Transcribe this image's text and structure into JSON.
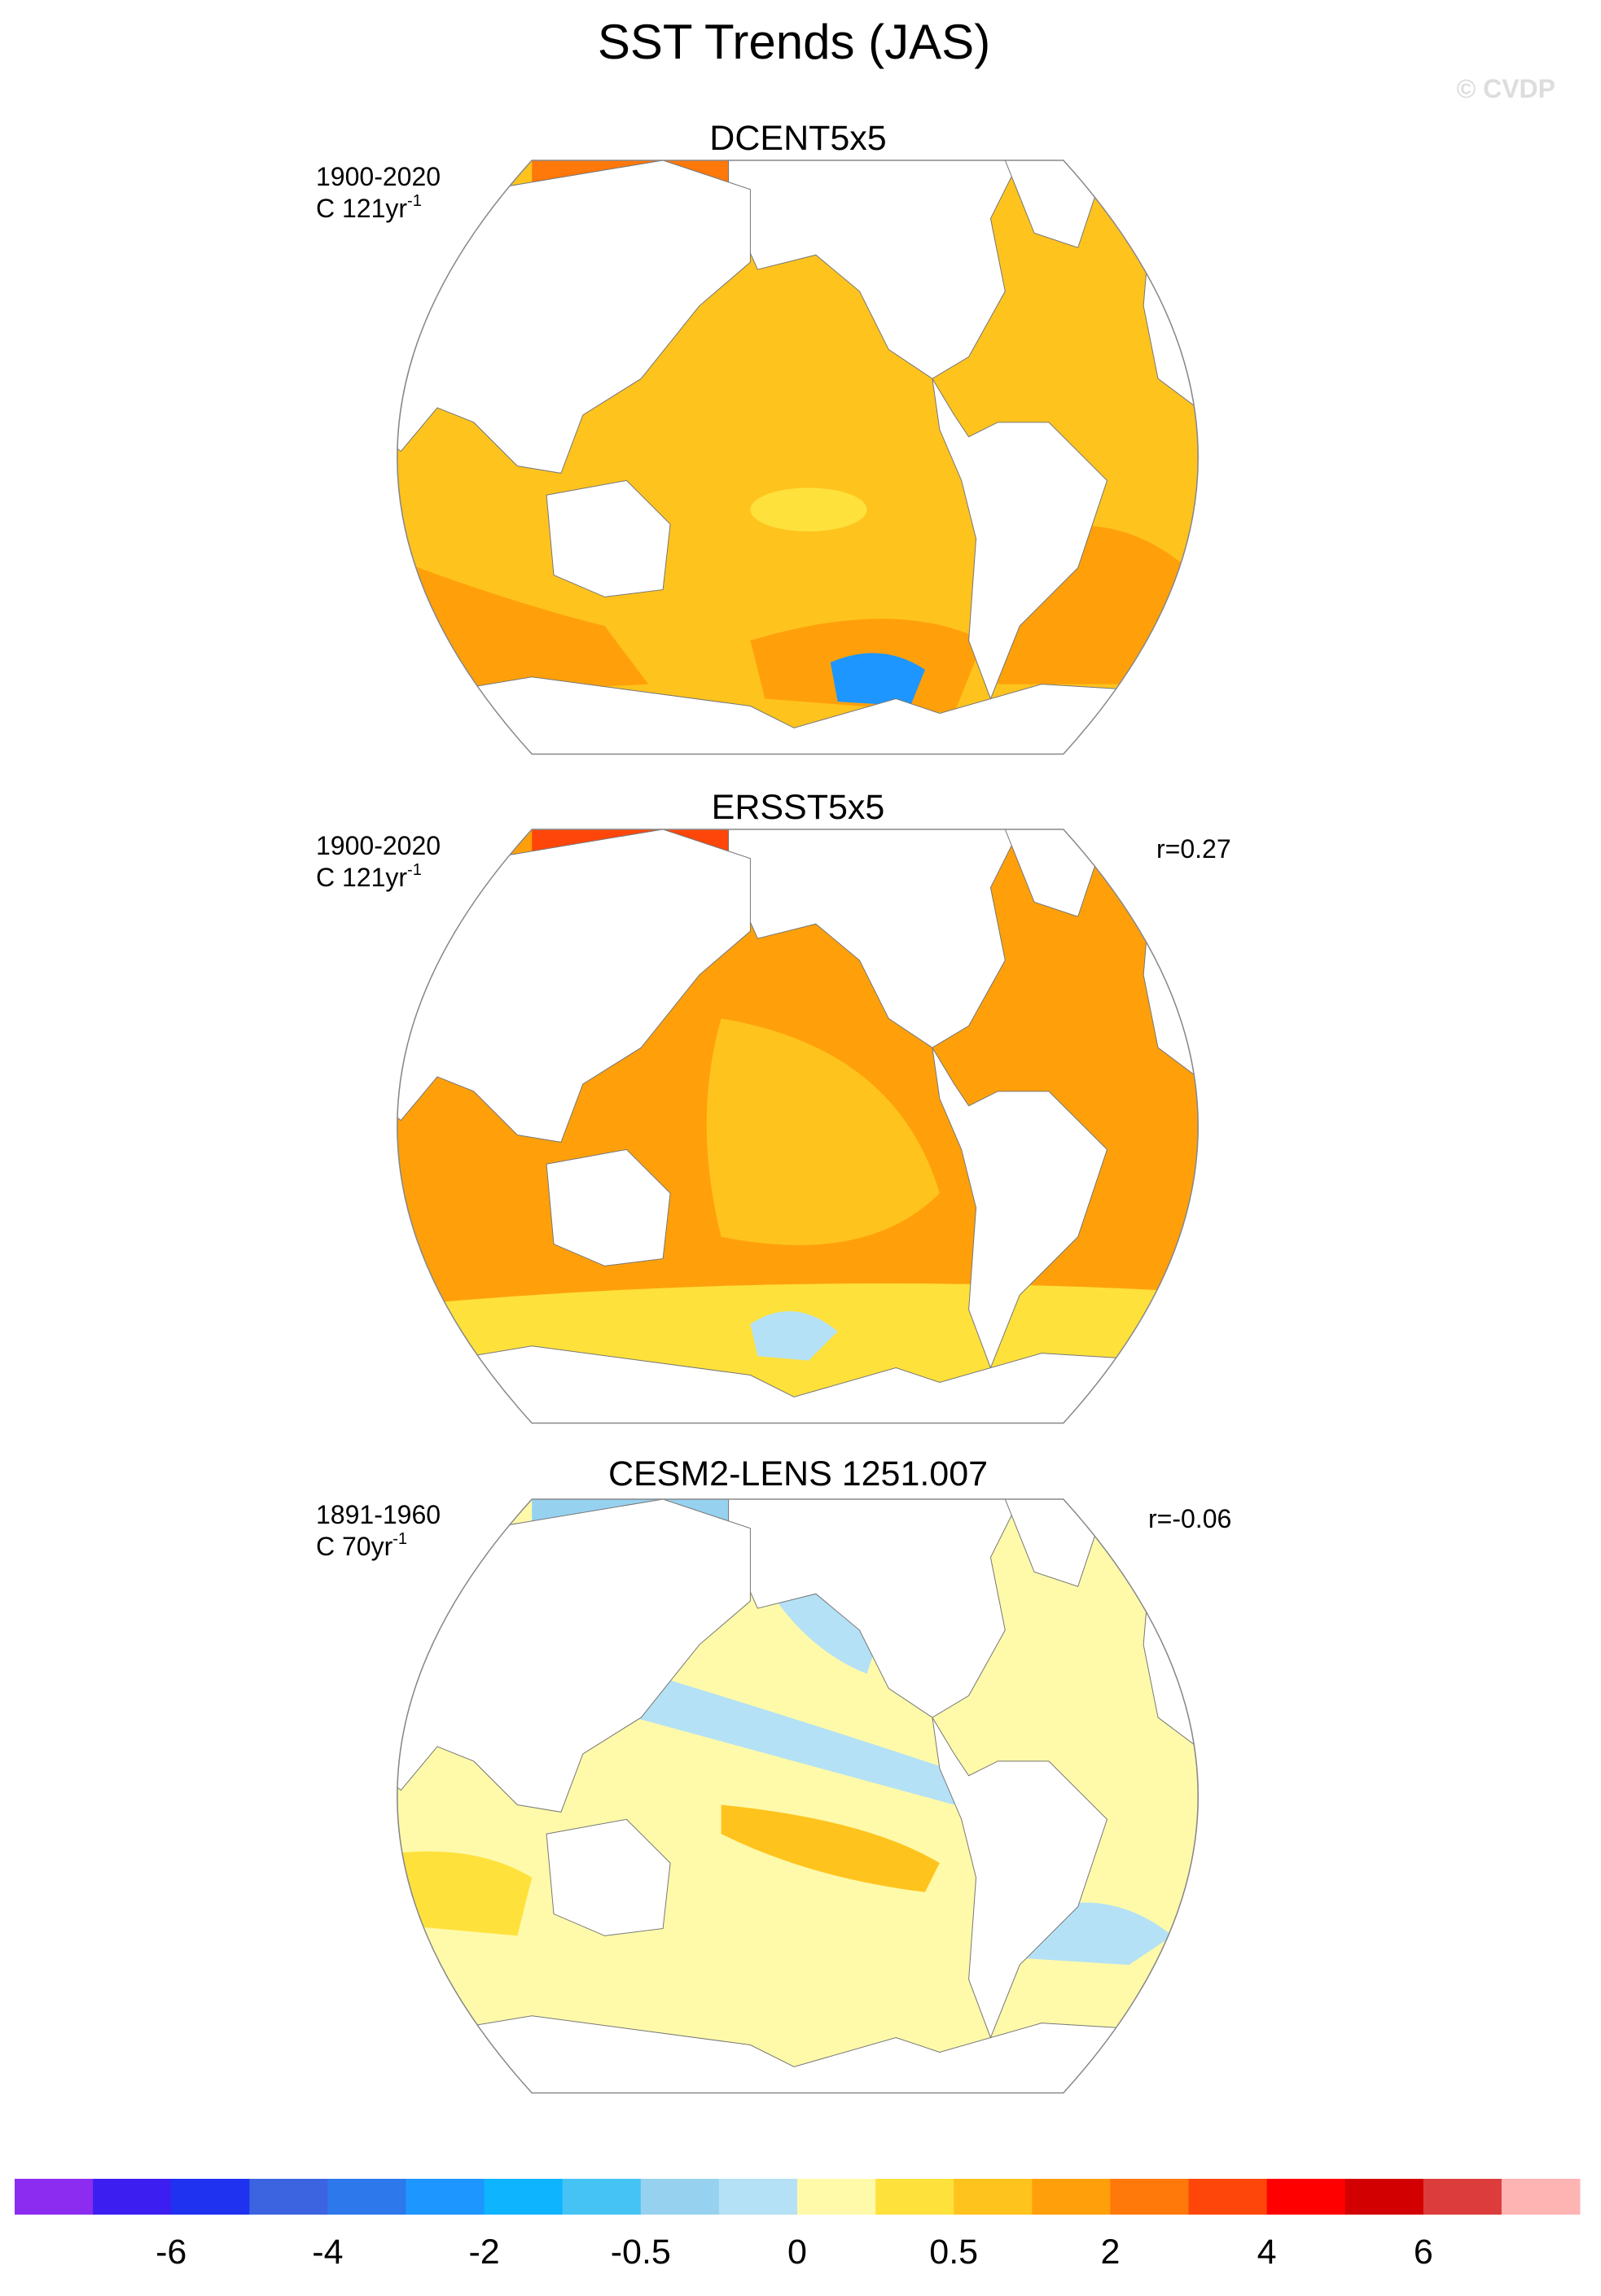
{
  "title": "SST Trends (JAS)",
  "watermark": "© CVDP",
  "panels": [
    {
      "title": "DCENT5x5",
      "period": "1900-2020",
      "trend_unit": "C 121yr",
      "trend_exponent": "-1"
    },
    {
      "title": "ERSST5x5",
      "period": "1900-2020",
      "trend_unit": "C 121yr",
      "trend_exponent": "-1",
      "correlation": "r=0.27"
    },
    {
      "title": "CESM2-LENS 1251.007",
      "period": "1891-1960",
      "trend_unit": "C 70yr",
      "trend_exponent": "-1",
      "correlation": "r=-0.06"
    }
  ],
  "colorbar": {
    "colors": [
      "#8c2cf0",
      "#3c1ef0",
      "#1e32f0",
      "#3c64e1",
      "#2d78eb",
      "#1e96ff",
      "#0fb4ff",
      "#46c3f5",
      "#96d2f0",
      "#b4e1f5",
      "#fffaaa",
      "#ffe13c",
      "#ffc31e",
      "#ffa00a",
      "#ff780a",
      "#ff460a",
      "#ff0000",
      "#d20000",
      "#dc3c3c",
      "#ffb4b4"
    ],
    "ticks": [
      -6,
      -4,
      -2,
      -0.5,
      0,
      0.5,
      2,
      4,
      6
    ]
  }
}
